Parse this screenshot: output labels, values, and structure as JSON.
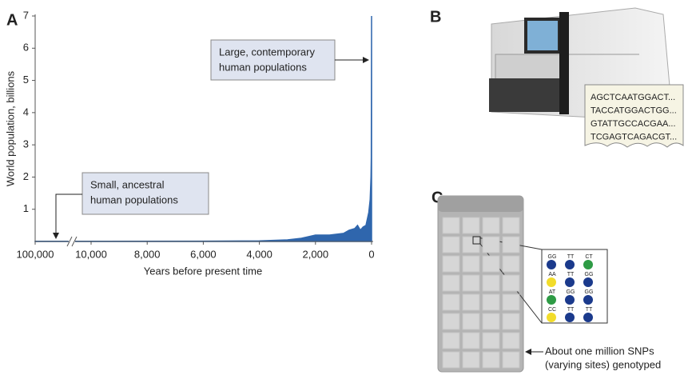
{
  "panels": {
    "a": "A",
    "b": "B",
    "c": "C"
  },
  "chart_data": {
    "type": "area",
    "y_label": "World population, billions",
    "x_label": "Years before present time",
    "x": [
      100000,
      10000,
      6000,
      4000,
      3000,
      2500,
      2000,
      1500,
      1000,
      800,
      600,
      500,
      400,
      300,
      200,
      100,
      50,
      20,
      10,
      0
    ],
    "values": [
      0.005,
      0.005,
      0.01,
      0.02,
      0.05,
      0.1,
      0.2,
      0.2,
      0.25,
      0.35,
      0.4,
      0.5,
      0.35,
      0.45,
      0.5,
      0.9,
      1.3,
      2.0,
      2.6,
      7
    ],
    "color": "#2f66ad",
    "xlim": [
      100000,
      0
    ],
    "xticks": [
      {
        "value": 100000,
        "label": "100,000"
      },
      {
        "value": 10000,
        "label": "10,000"
      },
      {
        "value": 8000,
        "label": "8,000"
      },
      {
        "value": 6000,
        "label": "6,000"
      },
      {
        "value": 4000,
        "label": "4,000"
      },
      {
        "value": 2000,
        "label": "2,000"
      },
      0
    ],
    "ylim": [
      0,
      7
    ],
    "yticks": [
      1,
      2,
      3,
      4,
      5,
      6,
      7
    ],
    "annotations": [
      {
        "lines": [
          "Small, ancestral",
          "human populations"
        ]
      },
      {
        "lines": [
          "Large, contemporary",
          "human populations"
        ]
      }
    ]
  },
  "sequencer": {
    "reads": [
      "AGCTCAATGGACT...",
      "TACCATGGACTGG...",
      "GTATTGCCACGAA...",
      "TCGAGTCAGACGT..."
    ]
  },
  "chip": {
    "genotypes": [
      [
        {
          "label": "GG",
          "color": "#1b3a8c"
        },
        {
          "label": "TT",
          "color": "#1b3a8c"
        },
        {
          "label": "CT",
          "color": "#2e9b45"
        }
      ],
      [
        {
          "label": "AA",
          "color": "#f2dc2a"
        },
        {
          "label": "TT",
          "color": "#1b3a8c"
        },
        {
          "label": "GG",
          "color": "#1b3a8c"
        }
      ],
      [
        {
          "label": "AT",
          "color": "#2e9b45"
        },
        {
          "label": "GG",
          "color": "#1b3a8c"
        },
        {
          "label": "GG",
          "color": "#1b3a8c"
        }
      ],
      [
        {
          "label": "CC",
          "color": "#f2dc2a"
        },
        {
          "label": "TT",
          "color": "#1b3a8c"
        },
        {
          "label": "TT",
          "color": "#1b3a8c"
        }
      ]
    ],
    "caption": [
      "About one million SNPs",
      "(varying sites) genotyped"
    ]
  }
}
